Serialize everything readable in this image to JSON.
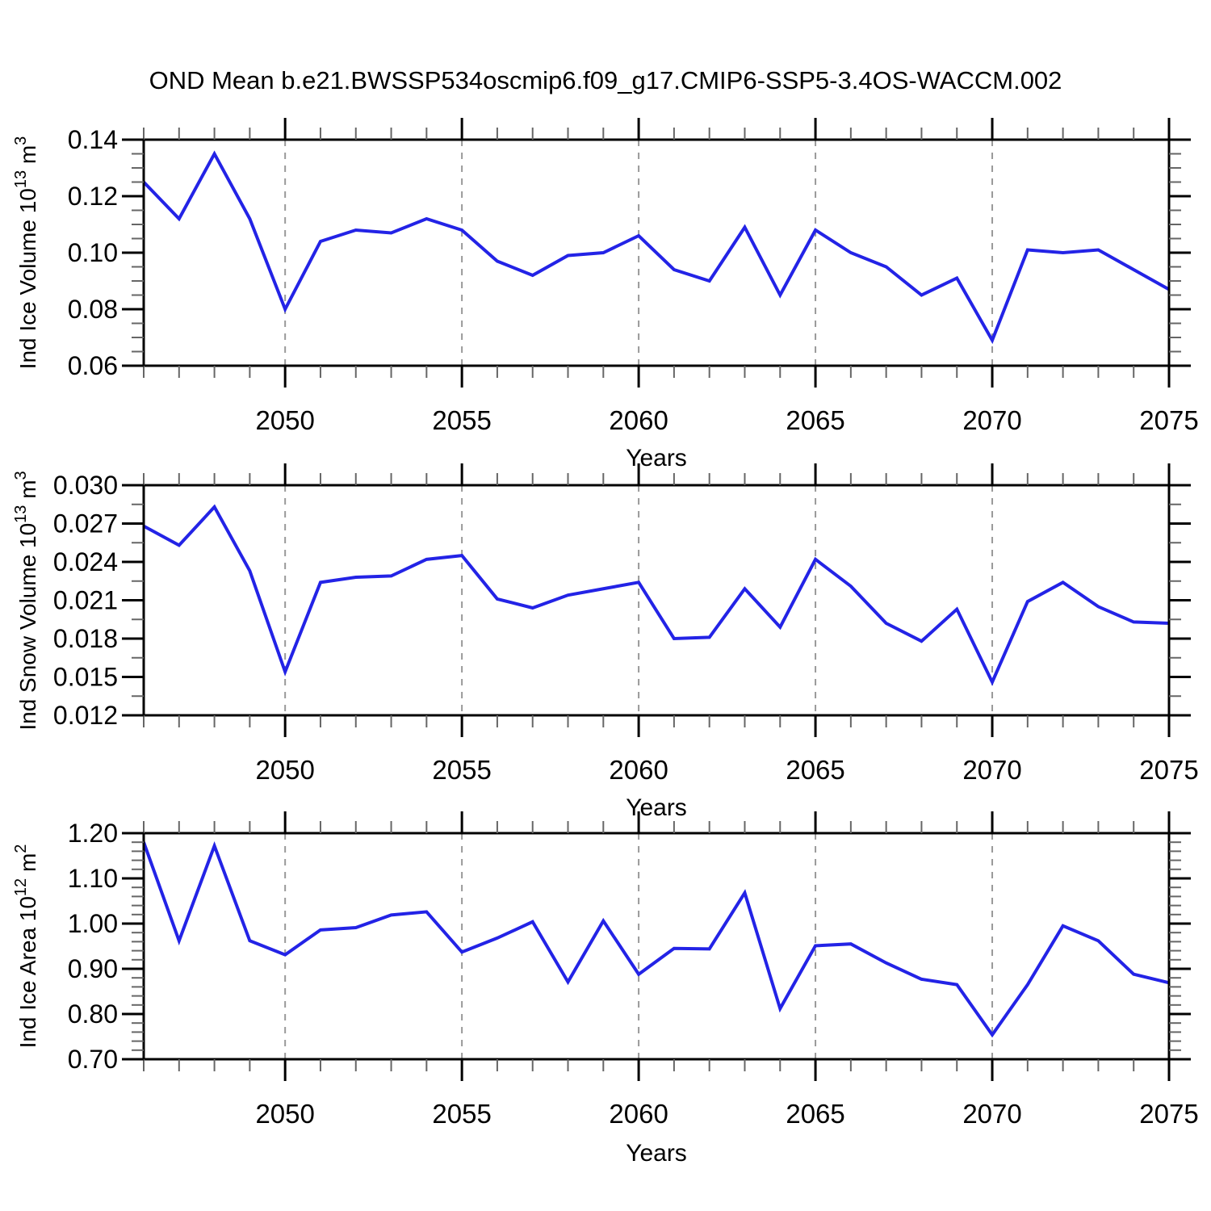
{
  "title": "OND Mean b.e21.BWSSP534oscmip6.f09_g17.CMIP6-SSP5-3.4OS-WACCM.002",
  "colors": {
    "line": "#2323e6",
    "frame": "#000000",
    "major_tick": "#000000",
    "minor_tick": "#666666",
    "grid": "#999999",
    "background": "#ffffff"
  },
  "x_axis": {
    "label": "Years",
    "range": [
      2046,
      2075
    ],
    "ticks": [
      {
        "v": 2050,
        "label": "2050"
      },
      {
        "v": 2055,
        "label": "2055"
      },
      {
        "v": 2060,
        "label": "2060"
      },
      {
        "v": 2065,
        "label": "2065"
      },
      {
        "v": 2070,
        "label": "2070"
      },
      {
        "v": 2075,
        "label": "2075"
      }
    ],
    "minor_step": 1,
    "grid": [
      2050,
      2055,
      2060,
      2065,
      2070
    ],
    "years": [
      2046,
      2047,
      2048,
      2049,
      2050,
      2051,
      2052,
      2053,
      2054,
      2055,
      2056,
      2057,
      2058,
      2059,
      2060,
      2061,
      2062,
      2063,
      2064,
      2065,
      2066,
      2067,
      2068,
      2069,
      2070,
      2071,
      2072,
      2073,
      2074,
      2075
    ]
  },
  "chart_data": [
    {
      "type": "line",
      "name": "ind-ice-volume",
      "ylabel": {
        "base": "Ind Ice Volume 10",
        "exp": "13",
        "unit": " m",
        "unit_exp": "3"
      },
      "xlabel": "Years",
      "ylim": [
        0.06,
        0.14
      ],
      "y_minor_step": 0.005,
      "yticks": [
        {
          "v": 0.14,
          "label": "0.14"
        },
        {
          "v": 0.12,
          "label": "0.12"
        },
        {
          "v": 0.1,
          "label": "0.10"
        },
        {
          "v": 0.08,
          "label": "0.08"
        },
        {
          "v": 0.06,
          "label": "0.06"
        }
      ],
      "values": [
        0.125,
        0.112,
        0.135,
        0.112,
        0.08,
        0.104,
        0.108,
        0.107,
        0.112,
        0.108,
        0.097,
        0.092,
        0.099,
        0.1,
        0.106,
        0.094,
        0.09,
        0.109,
        0.085,
        0.108,
        0.1,
        0.095,
        0.085,
        0.091,
        0.069,
        0.101,
        0.1,
        0.101,
        0.094,
        0.087
      ]
    },
    {
      "type": "line",
      "name": "ind-snow-volume",
      "ylabel": {
        "base": "Ind Snow Volume 10",
        "exp": "13",
        "unit": " m",
        "unit_exp": "3"
      },
      "xlabel": "Years",
      "ylim": [
        0.012,
        0.03
      ],
      "y_minor_step": 0.0015,
      "yticks": [
        {
          "v": 0.03,
          "label": "0.030"
        },
        {
          "v": 0.027,
          "label": "0.027"
        },
        {
          "v": 0.024,
          "label": "0.024"
        },
        {
          "v": 0.021,
          "label": "0.021"
        },
        {
          "v": 0.018,
          "label": "0.018"
        },
        {
          "v": 0.015,
          "label": "0.015"
        },
        {
          "v": 0.012,
          "label": "0.012"
        }
      ],
      "values": [
        0.0268,
        0.0253,
        0.0283,
        0.0233,
        0.0154,
        0.0224,
        0.0228,
        0.0229,
        0.0242,
        0.0245,
        0.0211,
        0.0204,
        0.0214,
        0.0219,
        0.0224,
        0.018,
        0.0181,
        0.0219,
        0.0189,
        0.0242,
        0.0221,
        0.0192,
        0.0178,
        0.0203,
        0.0146,
        0.0209,
        0.0224,
        0.0205,
        0.0193,
        0.0192
      ]
    },
    {
      "type": "line",
      "name": "ind-ice-area",
      "ylabel": {
        "base": "Ind Ice Area 10",
        "exp": "12",
        "unit": " m",
        "unit_exp": "2"
      },
      "xlabel": "Years",
      "ylim": [
        0.7,
        1.2
      ],
      "y_minor_step": 0.02,
      "yticks": [
        {
          "v": 1.2,
          "label": "1.20"
        },
        {
          "v": 1.1,
          "label": "1.10"
        },
        {
          "v": 1.0,
          "label": "1.00"
        },
        {
          "v": 0.9,
          "label": "0.90"
        },
        {
          "v": 0.8,
          "label": "0.80"
        },
        {
          "v": 0.7,
          "label": "0.70"
        }
      ],
      "values": [
        1.18,
        0.962,
        1.172,
        0.962,
        0.931,
        0.986,
        0.991,
        1.019,
        1.026,
        0.937,
        0.968,
        1.004,
        0.871,
        1.006,
        0.888,
        0.945,
        0.944,
        1.068,
        0.812,
        0.951,
        0.955,
        0.913,
        0.877,
        0.865,
        0.754,
        0.865,
        0.995,
        0.962,
        0.888,
        0.869
      ]
    }
  ]
}
